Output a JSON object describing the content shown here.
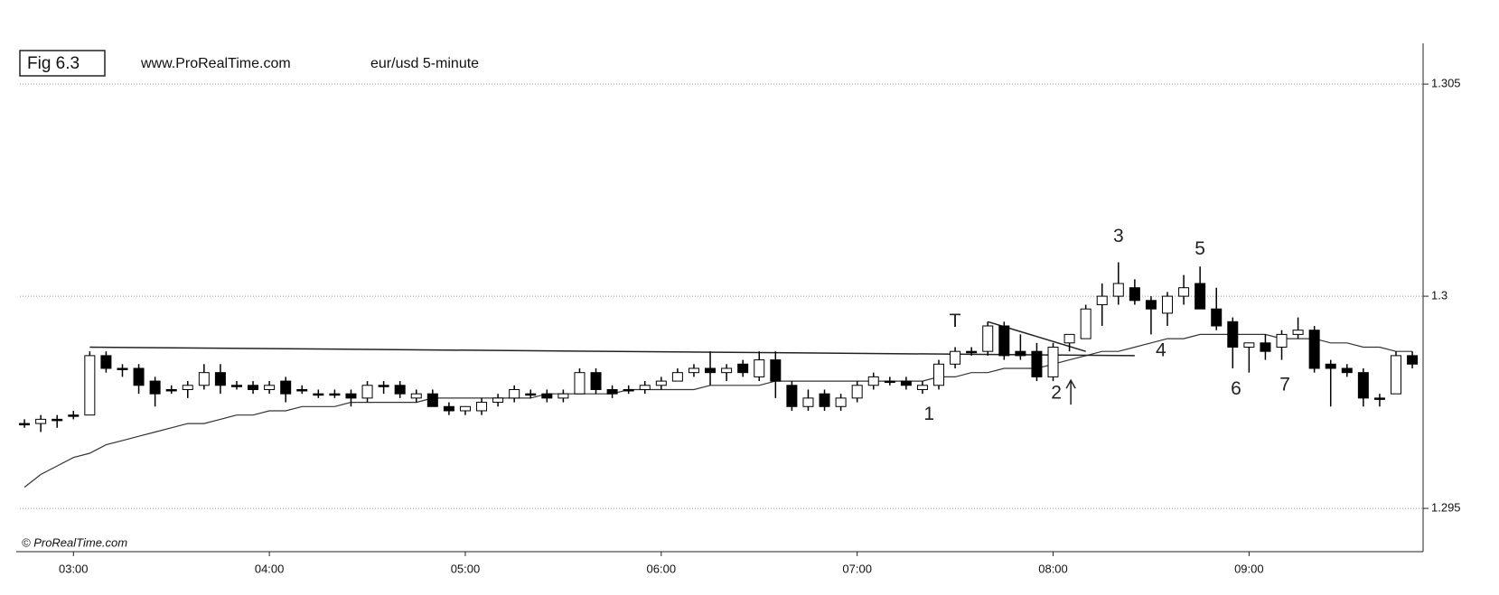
{
  "chart_data": {
    "type": "candlestick",
    "figure_label": "Fig 6.3",
    "source": "www.ProRealTime.com",
    "title": "eur/usd  5-minute",
    "watermark": "© ProRealTime.com",
    "x": [
      165,
      170,
      175,
      180,
      185,
      190,
      195,
      200,
      205,
      210,
      215,
      220,
      225,
      230,
      235,
      240,
      245,
      250,
      255,
      260,
      265,
      270,
      275,
      280,
      285,
      290,
      295,
      300,
      305,
      310,
      315,
      320,
      325,
      330,
      335,
      340,
      345,
      350,
      355,
      360,
      365,
      370,
      375,
      380,
      385,
      390,
      395,
      400,
      405,
      410,
      415,
      420,
      425,
      430,
      435,
      440,
      445,
      450,
      455,
      460,
      465,
      470,
      475,
      480,
      485,
      490,
      495,
      500,
      505,
      510,
      515,
      520,
      525,
      530,
      535,
      540,
      545,
      550,
      555,
      560,
      565,
      570,
      575,
      580,
      585,
      590
    ],
    "open": [
      1.297,
      1.297,
      1.2971,
      1.2972,
      1.2972,
      1.2986,
      1.2983,
      1.2983,
      1.298,
      1.2978,
      1.2978,
      1.2979,
      1.2982,
      1.2979,
      1.2979,
      1.2978,
      1.298,
      1.2978,
      1.2977,
      1.2977,
      1.2977,
      1.2976,
      1.2979,
      1.2979,
      1.2976,
      1.2977,
      1.2974,
      1.2973,
      1.2973,
      1.2975,
      1.2976,
      1.2977,
      1.2977,
      1.2976,
      1.2977,
      1.2982,
      1.2978,
      1.2978,
      1.2978,
      1.2979,
      1.298,
      1.2982,
      1.2983,
      1.2982,
      1.2984,
      1.2981,
      1.2985,
      1.2979,
      1.2974,
      1.2977,
      1.2974,
      1.2976,
      1.2979,
      1.298,
      1.298,
      1.2978,
      1.2979,
      1.2984,
      1.2987,
      1.2987,
      1.2993,
      1.2987,
      1.2987,
      1.2981,
      1.2989,
      1.299,
      1.2998,
      1.3,
      1.3002,
      1.2999,
      1.2996,
      1.3,
      1.3003,
      1.2997,
      1.2994,
      1.2988,
      1.2989,
      1.2988,
      1.2991,
      1.2992,
      1.2984,
      1.2983,
      1.2982,
      1.2976,
      1.2977,
      1.2986
    ],
    "high": [
      1.2971,
      1.2972,
      1.2972,
      1.2973,
      1.2987,
      1.2987,
      1.2984,
      1.2984,
      1.2981,
      1.2979,
      1.298,
      1.2984,
      1.2984,
      1.298,
      1.298,
      1.298,
      1.2981,
      1.2979,
      1.2978,
      1.2978,
      1.2978,
      1.298,
      1.298,
      1.298,
      1.2978,
      1.2978,
      1.2975,
      1.2974,
      1.2976,
      1.2977,
      1.2979,
      1.2978,
      1.2978,
      1.2978,
      1.2983,
      1.2983,
      1.2979,
      1.2979,
      1.298,
      1.2981,
      1.2983,
      1.2984,
      1.2987,
      1.2984,
      1.2985,
      1.2987,
      1.2987,
      1.298,
      1.2978,
      1.2978,
      1.2977,
      1.298,
      1.2982,
      1.2981,
      1.2981,
      1.298,
      1.2985,
      1.2988,
      1.2988,
      1.2994,
      1.2994,
      1.2991,
      1.2989,
      1.2989,
      1.2991,
      1.2998,
      1.3003,
      1.3008,
      1.3004,
      1.3,
      1.3001,
      1.3005,
      1.3007,
      1.3002,
      1.2995,
      1.2989,
      1.2991,
      1.2992,
      1.2995,
      1.2993,
      1.2985,
      1.2984,
      1.2983,
      1.2977,
      1.2987,
      1.2987
    ],
    "low": [
      1.2969,
      1.2968,
      1.2969,
      1.2971,
      1.2972,
      1.2982,
      1.2981,
      1.2977,
      1.2974,
      1.2977,
      1.2976,
      1.2978,
      1.2977,
      1.2978,
      1.2977,
      1.2977,
      1.2975,
      1.2977,
      1.2976,
      1.2976,
      1.2974,
      1.2975,
      1.2977,
      1.2976,
      1.2975,
      1.2974,
      1.2972,
      1.2972,
      1.2972,
      1.2974,
      1.2975,
      1.2976,
      1.2975,
      1.2975,
      1.2977,
      1.2977,
      1.2976,
      1.2977,
      1.2977,
      1.2978,
      1.298,
      1.2981,
      1.2979,
      1.298,
      1.2981,
      1.298,
      1.2976,
      1.2973,
      1.2973,
      1.2973,
      1.2973,
      1.2975,
      1.2978,
      1.2979,
      1.2978,
      1.2977,
      1.2978,
      1.2983,
      1.2986,
      1.2986,
      1.2985,
      1.2985,
      1.298,
      1.298,
      1.2987,
      1.299,
      1.2993,
      1.2998,
      1.2998,
      1.2991,
      1.2993,
      1.2998,
      1.2997,
      1.2992,
      1.2983,
      1.2982,
      1.2985,
      1.2985,
      1.299,
      1.2982,
      1.2974,
      1.2981,
      1.2974,
      1.2974,
      1.2977,
      1.2983
    ],
    "close": [
      1.297,
      1.2971,
      1.2971,
      1.2972,
      1.2986,
      1.2983,
      1.2983,
      1.2979,
      1.2977,
      1.2978,
      1.2979,
      1.2982,
      1.2979,
      1.2979,
      1.2978,
      1.2979,
      1.2977,
      1.2978,
      1.2977,
      1.2977,
      1.2976,
      1.2979,
      1.2979,
      1.2977,
      1.2977,
      1.2974,
      1.2973,
      1.2974,
      1.2975,
      1.2976,
      1.2978,
      1.2977,
      1.2976,
      1.2977,
      1.2982,
      1.2978,
      1.2977,
      1.2978,
      1.2979,
      1.298,
      1.2982,
      1.2983,
      1.2982,
      1.2983,
      1.2982,
      1.2985,
      1.298,
      1.2974,
      1.2976,
      1.2974,
      1.2976,
      1.2979,
      1.2981,
      1.298,
      1.2979,
      1.2979,
      1.2984,
      1.2987,
      1.2987,
      1.2993,
      1.2986,
      1.2986,
      1.2981,
      1.2988,
      1.2991,
      1.2997,
      1.3,
      1.3003,
      1.2999,
      1.2997,
      1.3,
      1.3002,
      1.2997,
      1.2993,
      1.2988,
      1.2989,
      1.2987,
      1.2991,
      1.2992,
      1.2983,
      1.2983,
      1.2982,
      1.2976,
      1.2976,
      1.2986,
      1.2984
    ],
    "moving_average": [
      1.2955,
      1.2958,
      1.296,
      1.2962,
      1.2963,
      1.2965,
      1.2966,
      1.2967,
      1.2968,
      1.2969,
      1.297,
      1.297,
      1.2971,
      1.2972,
      1.2972,
      1.2973,
      1.2973,
      1.2974,
      1.2974,
      1.2974,
      1.2975,
      1.2975,
      1.2975,
      1.2975,
      1.2975,
      1.2976,
      1.2976,
      1.2976,
      1.2976,
      1.2976,
      1.2976,
      1.2976,
      1.2977,
      1.2977,
      1.2977,
      1.2977,
      1.2977,
      1.2978,
      1.2978,
      1.2978,
      1.2978,
      1.2978,
      1.2979,
      1.2979,
      1.2979,
      1.2979,
      1.298,
      1.298,
      1.298,
      1.298,
      1.298,
      1.298,
      1.298,
      1.298,
      1.298,
      1.298,
      1.2981,
      1.2981,
      1.2982,
      1.2982,
      1.2983,
      1.2983,
      1.2983,
      1.2984,
      1.2985,
      1.2986,
      1.2987,
      1.2987,
      1.2988,
      1.2989,
      1.299,
      1.299,
      1.2991,
      1.2991,
      1.2991,
      1.2991,
      1.2991,
      1.299,
      1.299,
      1.299,
      1.2989,
      1.2989,
      1.2988,
      1.2988,
      1.2987,
      1.2987
    ],
    "trendlines": [
      {
        "x": [
          185,
          505
        ],
        "y": [
          1.2988,
          1.2986
        ]
      },
      {
        "x": [
          460,
          490
        ],
        "y": [
          1.2994,
          1.2987
        ]
      }
    ],
    "annotations": [
      {
        "text": "T",
        "x": 450,
        "y": 1.2994
      },
      {
        "text": "1",
        "x": 442,
        "y": 1.2972
      },
      {
        "text": "2",
        "x": 481,
        "y": 1.2977,
        "arrow": true
      },
      {
        "text": "3",
        "x": 500,
        "y": 1.3014
      },
      {
        "text": "4",
        "x": 513,
        "y": 1.2987
      },
      {
        "text": "5",
        "x": 525,
        "y": 1.3011
      },
      {
        "text": "6",
        "x": 536,
        "y": 1.2978
      },
      {
        "text": "7",
        "x": 551,
        "y": 1.2979
      }
    ],
    "xlim": [
      163.6,
      593.3
    ],
    "xticks": [
      {
        "value": 180,
        "label": "03:00"
      },
      {
        "value": 240,
        "label": "04:00"
      },
      {
        "value": 300,
        "label": "05:00"
      },
      {
        "value": 360,
        "label": "06:00"
      },
      {
        "value": 420,
        "label": "07:00"
      },
      {
        "value": 480,
        "label": "08:00"
      },
      {
        "value": 540,
        "label": "09:00"
      }
    ],
    "ylim": [
      1.29398,
      1.30596
    ],
    "yticks": [
      1.295,
      1.3,
      1.305
    ],
    "grid": true,
    "up_color": "#ffffff",
    "down_color": "#000000"
  }
}
